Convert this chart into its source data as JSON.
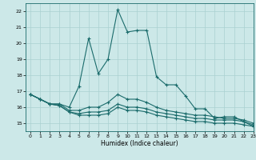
{
  "xlabel": "Humidex (Indice chaleur)",
  "xlim": [
    -0.5,
    23
  ],
  "ylim": [
    14.5,
    22.5
  ],
  "yticks": [
    15,
    16,
    17,
    18,
    19,
    20,
    21,
    22
  ],
  "xticks": [
    0,
    1,
    2,
    3,
    4,
    5,
    6,
    7,
    8,
    9,
    10,
    11,
    12,
    13,
    14,
    15,
    16,
    17,
    18,
    19,
    20,
    21,
    22,
    23
  ],
  "bg_color": "#cce8e8",
  "line_color": "#1a6b6b",
  "grid_color": "#aad0d0",
  "lines": [
    [
      16.8,
      16.5,
      16.2,
      16.2,
      16.0,
      17.3,
      20.3,
      18.1,
      19.0,
      22.1,
      20.7,
      20.8,
      20.8,
      17.9,
      17.4,
      17.4,
      16.7,
      15.9,
      15.9,
      15.3,
      15.4,
      15.4,
      15.1,
      14.8
    ],
    [
      16.8,
      16.5,
      16.2,
      16.2,
      15.8,
      15.8,
      16.0,
      16.0,
      16.3,
      16.8,
      16.5,
      16.5,
      16.3,
      16.0,
      15.8,
      15.7,
      15.6,
      15.5,
      15.5,
      15.4,
      15.3,
      15.3,
      15.2,
      15.0
    ],
    [
      16.8,
      16.5,
      16.2,
      16.1,
      15.7,
      15.6,
      15.7,
      15.7,
      15.8,
      16.2,
      16.0,
      16.0,
      15.9,
      15.7,
      15.6,
      15.5,
      15.4,
      15.3,
      15.3,
      15.2,
      15.2,
      15.2,
      15.1,
      14.9
    ],
    [
      16.8,
      16.5,
      16.2,
      16.1,
      15.7,
      15.5,
      15.5,
      15.5,
      15.6,
      16.0,
      15.8,
      15.8,
      15.7,
      15.5,
      15.4,
      15.3,
      15.2,
      15.1,
      15.1,
      15.0,
      15.0,
      15.0,
      14.9,
      14.8
    ]
  ]
}
